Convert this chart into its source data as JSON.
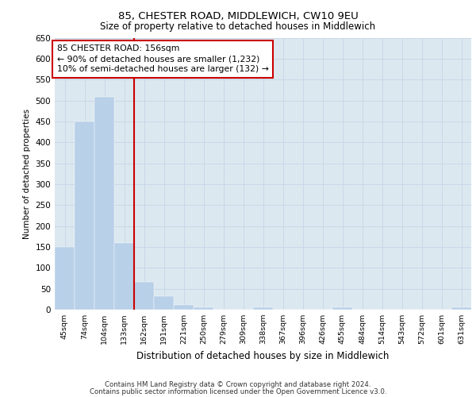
{
  "title1": "85, CHESTER ROAD, MIDDLEWICH, CW10 9EU",
  "title2": "Size of property relative to detached houses in Middlewich",
  "xlabel": "Distribution of detached houses by size in Middlewich",
  "ylabel": "Number of detached properties",
  "categories": [
    "45sqm",
    "74sqm",
    "104sqm",
    "133sqm",
    "162sqm",
    "191sqm",
    "221sqm",
    "250sqm",
    "279sqm",
    "309sqm",
    "338sqm",
    "367sqm",
    "396sqm",
    "426sqm",
    "455sqm",
    "484sqm",
    "514sqm",
    "543sqm",
    "572sqm",
    "601sqm",
    "631sqm"
  ],
  "values": [
    150,
    450,
    508,
    160,
    67,
    32,
    12,
    5,
    0,
    0,
    5,
    0,
    0,
    0,
    5,
    0,
    0,
    0,
    0,
    0,
    5
  ],
  "bar_color": "#b8d0e8",
  "bar_edge_color": "#b8d0e8",
  "vline_x_idx": 4,
  "vline_color": "#cc0000",
  "annotation_text": "85 CHESTER ROAD: 156sqm\n← 90% of detached houses are smaller (1,232)\n10% of semi-detached houses are larger (132) →",
  "annotation_box_color": "#ffffff",
  "annotation_box_edge": "#cc0000",
  "ylim": [
    0,
    650
  ],
  "yticks": [
    0,
    50,
    100,
    150,
    200,
    250,
    300,
    350,
    400,
    450,
    500,
    550,
    600,
    650
  ],
  "grid_color": "#c8d8e8",
  "background_color": "#dce8f0",
  "footer1": "Contains HM Land Registry data © Crown copyright and database right 2024.",
  "footer2": "Contains public sector information licensed under the Open Government Licence v3.0."
}
